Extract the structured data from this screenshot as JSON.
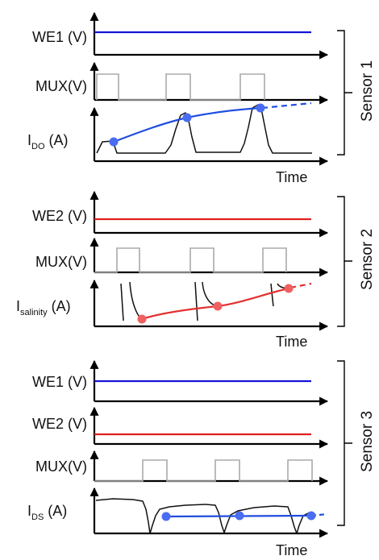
{
  "colors": {
    "we1": "#1414d6",
    "we2": "#e02020",
    "mux": "#aaaaaa",
    "trend_blue": "#1f4de0",
    "trend_red": "#e33030",
    "marker_blue": "#4a6cf0",
    "marker_red": "#f06060"
  },
  "sensor1": {
    "label": "Sensor 1",
    "we1_label": "WE1 (V)",
    "mux_label": "MUX(V)",
    "current_label_main": "I",
    "current_label_sub": "DO",
    "current_label_unit": " (A)",
    "time_label": "Time"
  },
  "sensor2": {
    "label": "Sensor 2",
    "we2_label": "WE2 (V)",
    "mux_label": "MUX(V)",
    "current_label_main": "I",
    "current_label_sub": "salinity",
    "current_label_unit": " (A)",
    "time_label": "Time"
  },
  "sensor3": {
    "label": "Sensor 3",
    "we1_label": "WE1 (V)",
    "we2_label": "WE2 (V)",
    "mux_label": "MUX(V)",
    "current_label_main": "I",
    "current_label_sub": "DS",
    "current_label_unit": " (A)",
    "time_label": "Time"
  }
}
